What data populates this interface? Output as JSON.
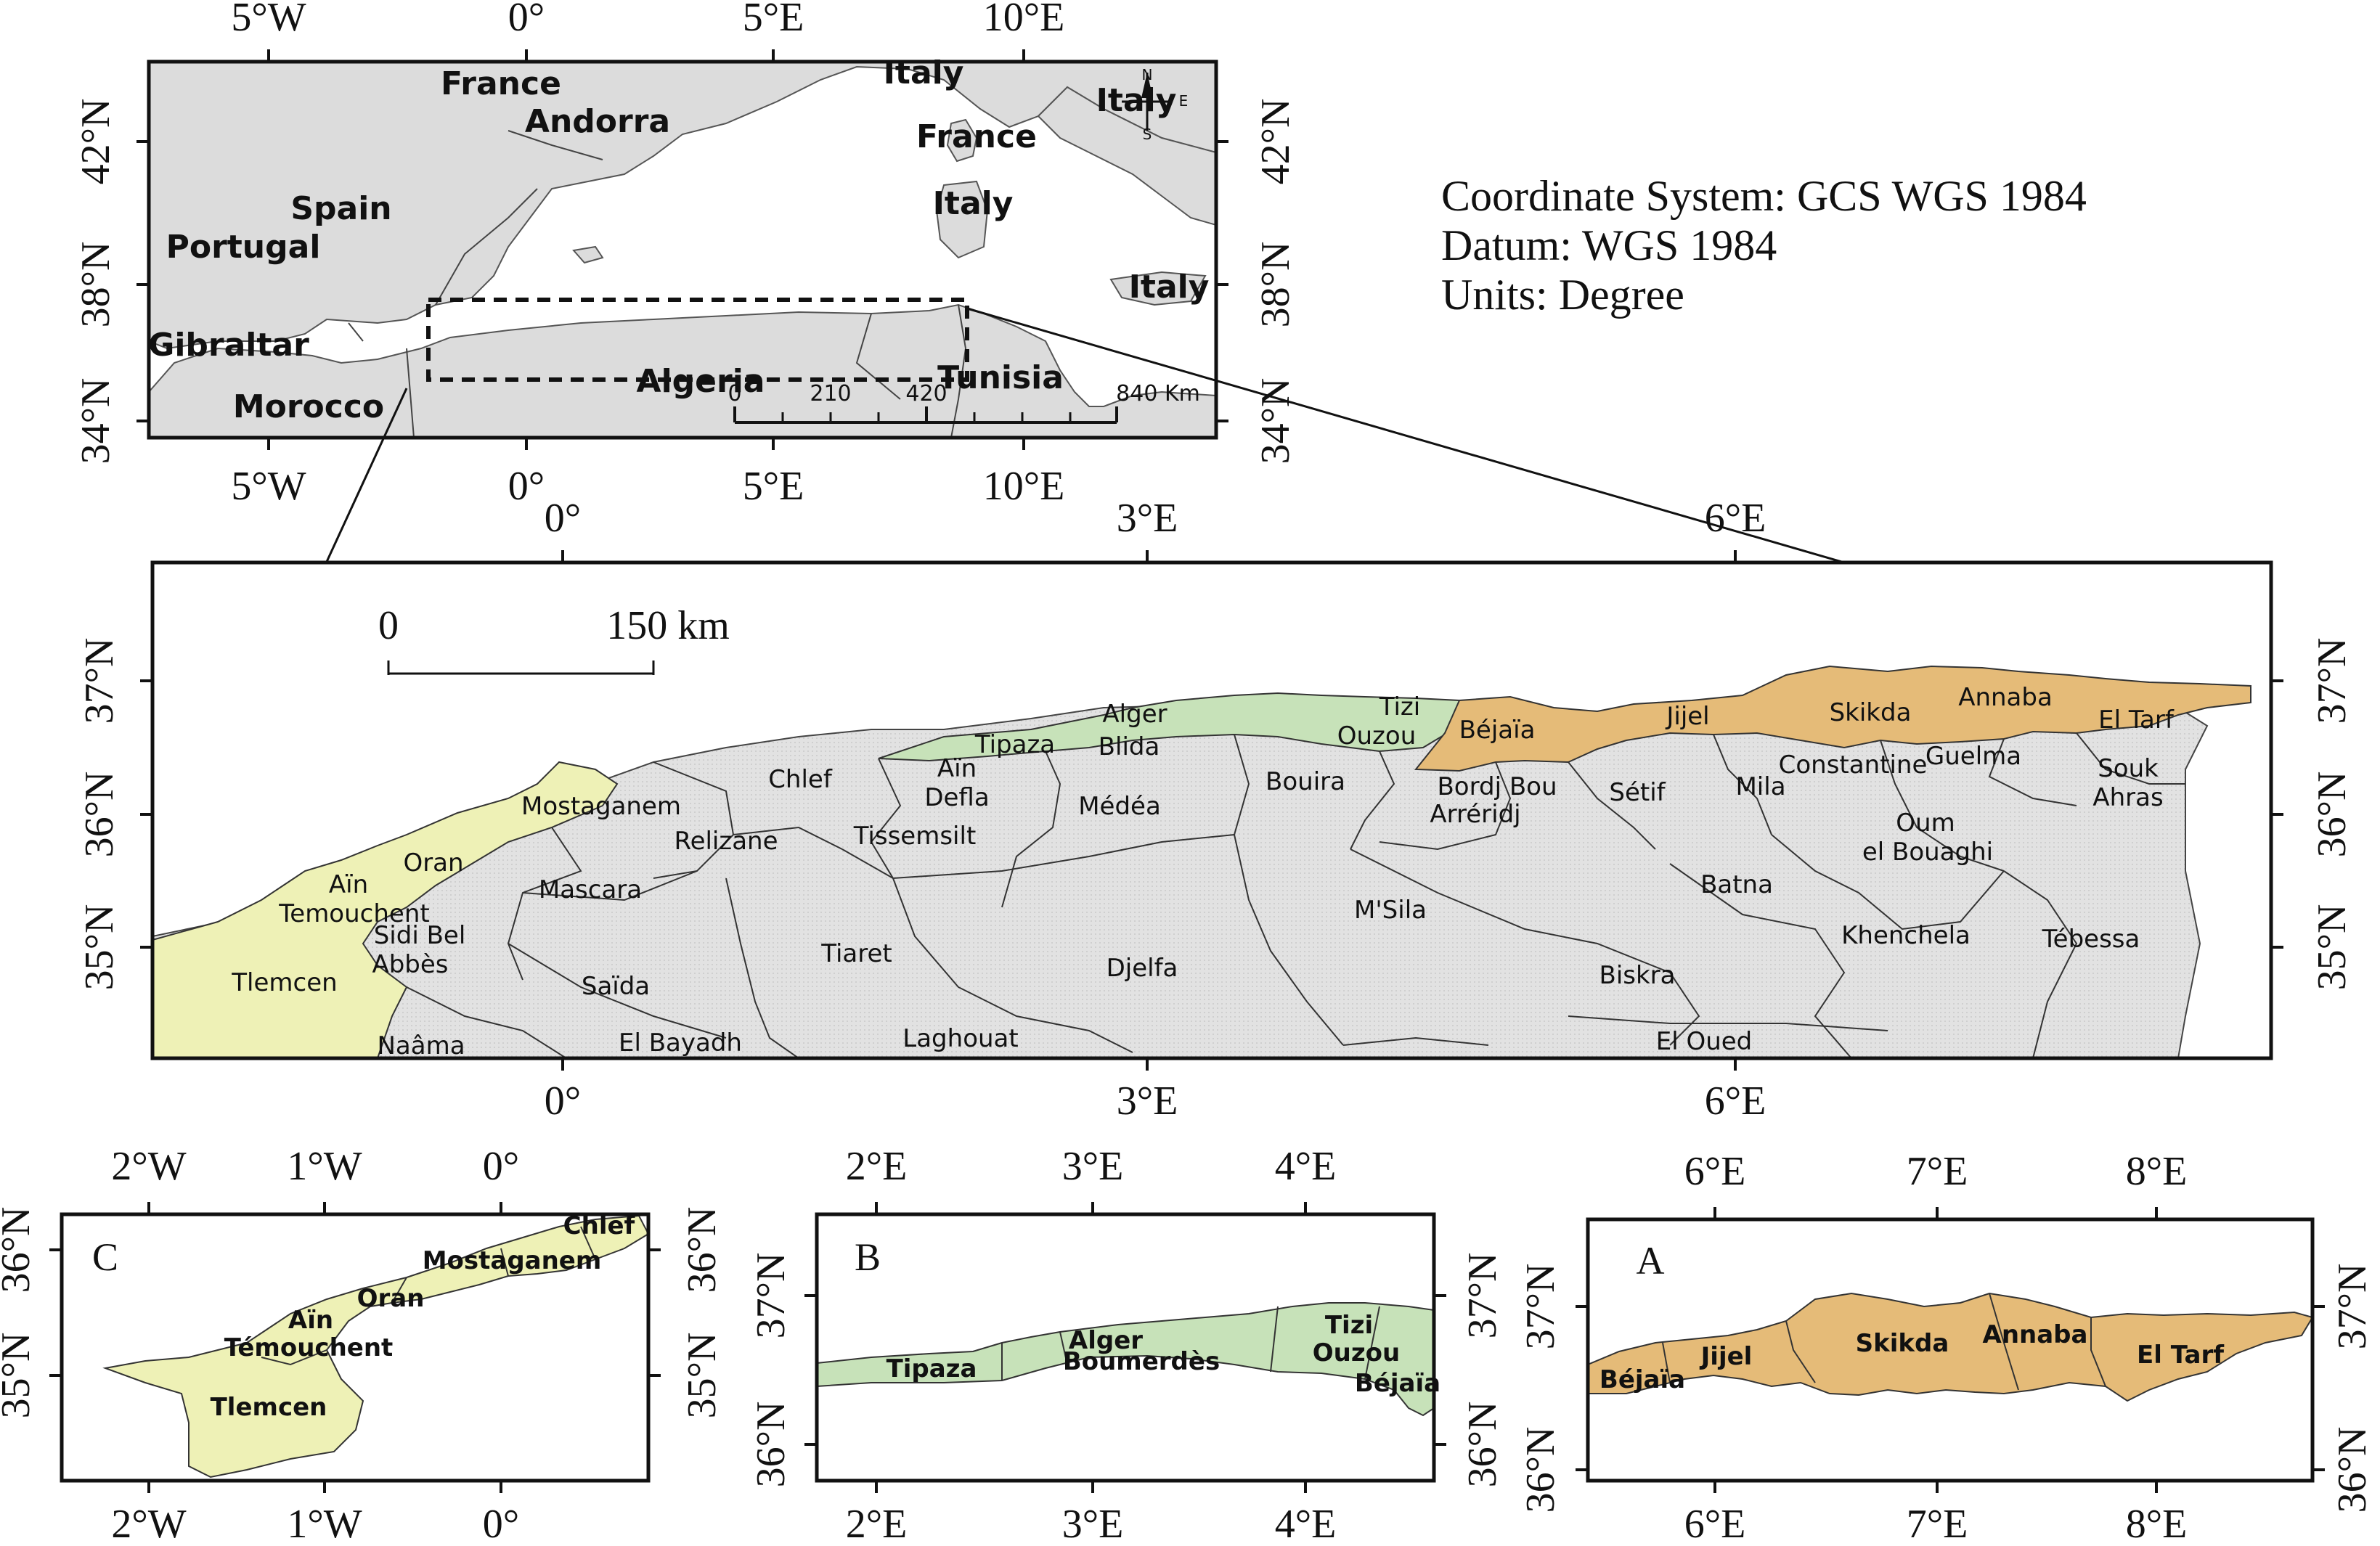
{
  "colors": {
    "other": "#dcdcdc",
    "east": "#e5bb78",
    "center": "#c7e2b9",
    "west": "#eef1b6"
  },
  "legend": {
    "line1": "Coordinate System: GCS WGS 1984",
    "line2": "Datum: WGS 1984",
    "line3": "Units: Degree"
  },
  "inset_top": {
    "x_ticks": [
      "5°W",
      "0°",
      "5°E",
      "10°E"
    ],
    "y_ticks": [
      "42°N",
      "38°N",
      "34°N"
    ],
    "countries": [
      "France",
      "Andorra",
      "Italy",
      "France",
      "Italy",
      "Italy",
      "Spain",
      "Portugal",
      "Italy",
      "Gibraltar",
      "Morocco",
      "Algeria",
      "Tunisia"
    ],
    "scale": [
      "0",
      "210",
      "420",
      "840 Km"
    ],
    "north": [
      "N",
      "E",
      "S"
    ]
  },
  "main": {
    "x_ticks": [
      "0°",
      "3°E",
      "6°E"
    ],
    "y_ticks": [
      "37°N",
      "36°N",
      "35°N"
    ],
    "scale_labels": [
      "0",
      "150 km"
    ],
    "wilayas": [
      "Alger",
      "Tizi",
      "Ouzou",
      "Béjaïa",
      "Jijel",
      "Skikda",
      "Annaba",
      "El Tarf",
      "Tipaza",
      "Blida",
      "Mostaganem",
      "Chlef",
      "Aïn",
      "Defla",
      "Médéa",
      "Bouira",
      "Bordj Bou",
      "Arréridj",
      "Sétif",
      "Mila",
      "Constantine",
      "Guelma",
      "Souk",
      "Ahras",
      "Relizane",
      "Tissemsilt",
      "Oran",
      "Aïn",
      "Temouchent",
      "Mascara",
      "Oum",
      "el Bouaghi",
      "Sidi Bel",
      "Abbès",
      "Batna",
      "M'Sila",
      "Tiaret",
      "Khenchela",
      "Tébessa",
      "Tlemcen",
      "Saïda",
      "Djelfa",
      "Biskra",
      "Naâma",
      "El Bayadh",
      "Laghouat",
      "El Oued"
    ]
  },
  "panel_c": {
    "letter": "C",
    "x_ticks": [
      "2°W",
      "1°W",
      "0°"
    ],
    "y_ticks": [
      "36°N",
      "35°N"
    ],
    "labels": [
      "Chlef",
      "Mostaganem",
      "Oran",
      "Aïn",
      "Témouchent",
      "Tlemcen"
    ]
  },
  "panel_b": {
    "letter": "B",
    "x_ticks": [
      "2°E",
      "3°E",
      "4°E"
    ],
    "y_ticks": [
      "37°N",
      "36°N"
    ],
    "labels": [
      "Tipaza",
      "Alger",
      "Boumerdès",
      "Tizi",
      "Ouzou",
      "Béjaïa"
    ]
  },
  "panel_a": {
    "letter": "A",
    "x_ticks": [
      "6°E",
      "7°E",
      "8°E"
    ],
    "y_ticks": [
      "37°N",
      "36°N"
    ],
    "labels": [
      "Béjaïa",
      "Jijel",
      "Skikda",
      "Annaba",
      "El Tarf"
    ]
  }
}
